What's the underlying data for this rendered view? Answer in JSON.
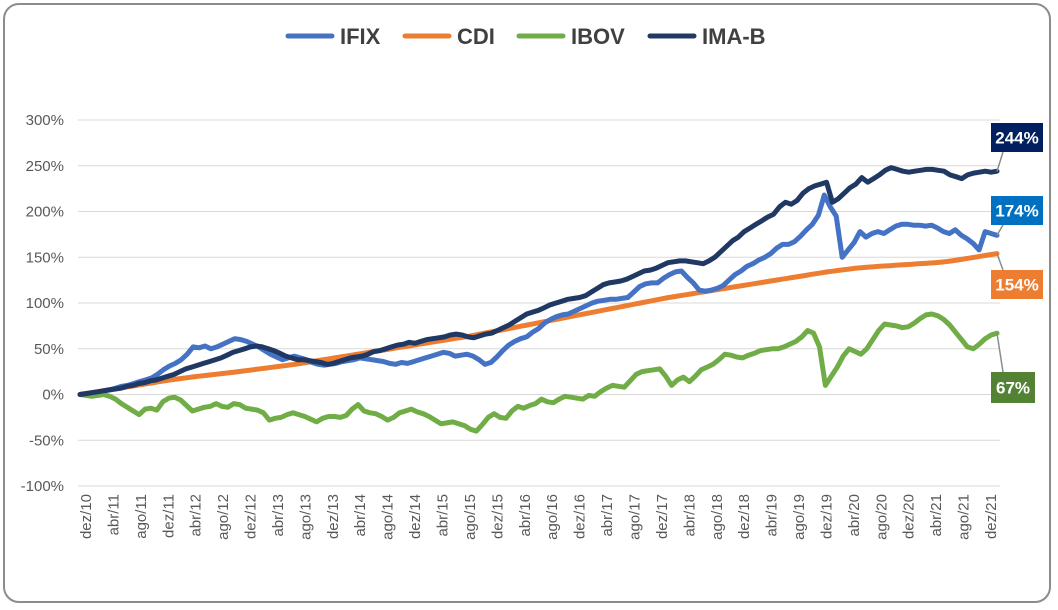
{
  "chart_data": {
    "type": "line",
    "title": "",
    "xlabel": "",
    "ylabel": "",
    "ylim": [
      -100,
      300
    ],
    "y_ticks": [
      "300%",
      "250%",
      "200%",
      "150%",
      "100%",
      "50%",
      "0%",
      "-50%",
      "-100%"
    ],
    "y_tick_values": [
      300,
      250,
      200,
      150,
      100,
      50,
      0,
      -50,
      -100
    ],
    "x_tick_labels": [
      "dez/10",
      "abr/11",
      "ago/11",
      "dez/11",
      "abr/12",
      "ago/12",
      "dez/12",
      "abr/13",
      "ago/13",
      "dez/13",
      "abr/14",
      "ago/14",
      "dez/14",
      "abr/15",
      "ago/15",
      "dez/15",
      "abr/16",
      "ago/16",
      "dez/16",
      "abr/17",
      "ago/17",
      "dez/17",
      "abr/18",
      "ago/18",
      "dez/18",
      "abr/19",
      "ago/19",
      "dez/19",
      "abr/20",
      "ago/20",
      "dez/20",
      "abr/21",
      "ago/21",
      "dez/21"
    ],
    "grid": true,
    "legend_position": "top",
    "series": [
      {
        "name": "IFIX",
        "color": "#4472c4",
        "end_label": "174%",
        "end_label_color": "#0070c0",
        "values": [
          0,
          1,
          2,
          3,
          4,
          5,
          7,
          9,
          10,
          12,
          14,
          16,
          18,
          22,
          27,
          31,
          34,
          38,
          44,
          52,
          51,
          53,
          50,
          52,
          55,
          58,
          61,
          60,
          58,
          55,
          52,
          48,
          44,
          41,
          38,
          40,
          42,
          40,
          38,
          35,
          33,
          32,
          33,
          34,
          36,
          37,
          38,
          40,
          39,
          38,
          37,
          36,
          34,
          33,
          35,
          34,
          36,
          38,
          40,
          42,
          44,
          46,
          45,
          42,
          43,
          44,
          42,
          38,
          33,
          35,
          41,
          48,
          54,
          58,
          61,
          63,
          68,
          72,
          78,
          82,
          85,
          87,
          88,
          91,
          94,
          97,
          100,
          102,
          103,
          104,
          104,
          105,
          106,
          112,
          118,
          121,
          122,
          122,
          127,
          131,
          134,
          135,
          128,
          122,
          114,
          113,
          114,
          116,
          119,
          125,
          131,
          135,
          140,
          143,
          147,
          150,
          154,
          160,
          164,
          164,
          167,
          173,
          180,
          186,
          196,
          218,
          205,
          195,
          150,
          158,
          166,
          178,
          172,
          176,
          178,
          176,
          180,
          184,
          186,
          186,
          185,
          185,
          184,
          185,
          182,
          178,
          176,
          180,
          174,
          170,
          165,
          158,
          178,
          176,
          174
        ]
      },
      {
        "name": "CDI",
        "color": "#ed7d31",
        "end_label": "154%",
        "end_label_color": "#ed7d31",
        "values": [
          0,
          1,
          2,
          3,
          4,
          5,
          6,
          7,
          8,
          9,
          10,
          11,
          12,
          13,
          14,
          15,
          16,
          16.8,
          17.6,
          18.4,
          19.2,
          20,
          20.7,
          21.4,
          22.1,
          22.8,
          23.5,
          24.2,
          25,
          25.8,
          26.6,
          27.4,
          28.2,
          29,
          29.8,
          30.6,
          31.4,
          32.2,
          33,
          34,
          35,
          36,
          37,
          38,
          39,
          40,
          41,
          42,
          43,
          44,
          45,
          46,
          47,
          48,
          49,
          50,
          51,
          52,
          53,
          54,
          55,
          56,
          57,
          58,
          59,
          60,
          61,
          62,
          63,
          64,
          65.2,
          66.4,
          67.6,
          68.8,
          70,
          71.2,
          72.4,
          73.6,
          74.8,
          76,
          77.2,
          78.4,
          79.6,
          80.8,
          82,
          83.2,
          84.4,
          85.6,
          86.8,
          88,
          89.2,
          90.4,
          91.6,
          92.8,
          94,
          95.2,
          96.4,
          97.6,
          98.8,
          100,
          101.2,
          102.4,
          103.6,
          104.8,
          106,
          107,
          108,
          109,
          110,
          111,
          112,
          113,
          114,
          115,
          116,
          117,
          118,
          119,
          120,
          121,
          122,
          123,
          124,
          125,
          126,
          127,
          128,
          129,
          130,
          131,
          132,
          133,
          134,
          134.8,
          135.6,
          136.4,
          137.2,
          138,
          138.5,
          139,
          139.5,
          140,
          140.4,
          140.8,
          141.2,
          141.6,
          142,
          142.4,
          142.8,
          143.2,
          143.6,
          144,
          144.6,
          145.2,
          146,
          147,
          148,
          149,
          150,
          151,
          152,
          153,
          154
        ]
      },
      {
        "name": "IBOV",
        "color": "#70ad47",
        "end_label": "67%",
        "end_label_color": "#548235",
        "values": [
          0,
          -1,
          -2,
          -1,
          0,
          -2,
          -5,
          -10,
          -14,
          -18,
          -22,
          -16,
          -15,
          -17,
          -8,
          -4,
          -3,
          -6,
          -12,
          -18,
          -16,
          -14,
          -13,
          -10,
          -13,
          -14,
          -10,
          -11,
          -15,
          -16,
          -17,
          -20,
          -28,
          -26,
          -25,
          -22,
          -20,
          -22,
          -24,
          -27,
          -30,
          -26,
          -24,
          -24,
          -25,
          -23,
          -16,
          -11,
          -18,
          -20,
          -21,
          -24,
          -28,
          -25,
          -20,
          -18,
          -16,
          -19,
          -21,
          -24,
          -28,
          -32,
          -31,
          -30,
          -32,
          -34,
          -38,
          -40,
          -33,
          -25,
          -21,
          -25,
          -26,
          -18,
          -13,
          -15,
          -12,
          -10,
          -5,
          -8,
          -9,
          -5,
          -2,
          -3,
          -4,
          -5,
          -1,
          -2,
          3,
          7,
          10,
          9,
          8,
          15,
          22,
          25,
          26,
          27,
          28,
          20,
          10,
          16,
          19,
          14,
          20,
          27,
          30,
          33,
          38,
          44,
          43,
          41,
          40,
          43,
          45,
          48,
          49,
          50,
          50,
          52,
          55,
          58,
          63,
          70,
          67,
          52,
          10,
          20,
          30,
          42,
          50,
          47,
          44,
          50,
          60,
          70,
          77,
          76,
          75,
          73,
          74,
          78,
          83,
          87,
          88,
          86,
          82,
          76,
          68,
          60,
          52,
          50,
          55,
          61,
          65,
          67
        ]
      },
      {
        "name": "IMA-B",
        "color": "#203864",
        "end_label": "244%",
        "end_label_color": "#002060",
        "values": [
          0,
          1,
          2,
          3,
          4,
          5,
          6,
          7,
          9,
          10,
          12,
          13,
          15,
          16,
          18,
          20,
          22,
          25,
          28,
          30,
          32,
          34,
          36,
          38,
          40,
          43,
          46,
          48,
          50,
          52,
          53,
          52,
          50,
          48,
          45,
          42,
          40,
          38,
          38,
          37,
          36,
          35,
          33,
          34,
          36,
          38,
          40,
          41,
          42,
          44,
          47,
          48,
          50,
          52,
          54,
          55,
          57,
          56,
          58,
          60,
          61,
          62,
          63,
          65,
          66,
          65,
          63,
          62,
          64,
          66,
          67,
          70,
          73,
          76,
          80,
          84,
          88,
          90,
          92,
          95,
          98,
          100,
          102,
          104,
          105,
          106,
          108,
          112,
          116,
          120,
          122,
          123,
          124,
          126,
          129,
          132,
          135,
          136,
          138,
          141,
          144,
          145,
          146,
          146,
          145,
          144,
          143,
          146,
          150,
          156,
          162,
          168,
          172,
          178,
          182,
          186,
          190,
          194,
          197,
          205,
          210,
          208,
          212,
          220,
          225,
          228,
          230,
          232,
          210,
          214,
          220,
          226,
          230,
          237,
          232,
          236,
          240,
          245,
          248,
          246,
          244,
          243,
          244,
          245,
          246,
          246,
          245,
          244,
          240,
          238,
          236,
          240,
          242,
          243,
          244,
          243,
          244
        ]
      }
    ]
  }
}
